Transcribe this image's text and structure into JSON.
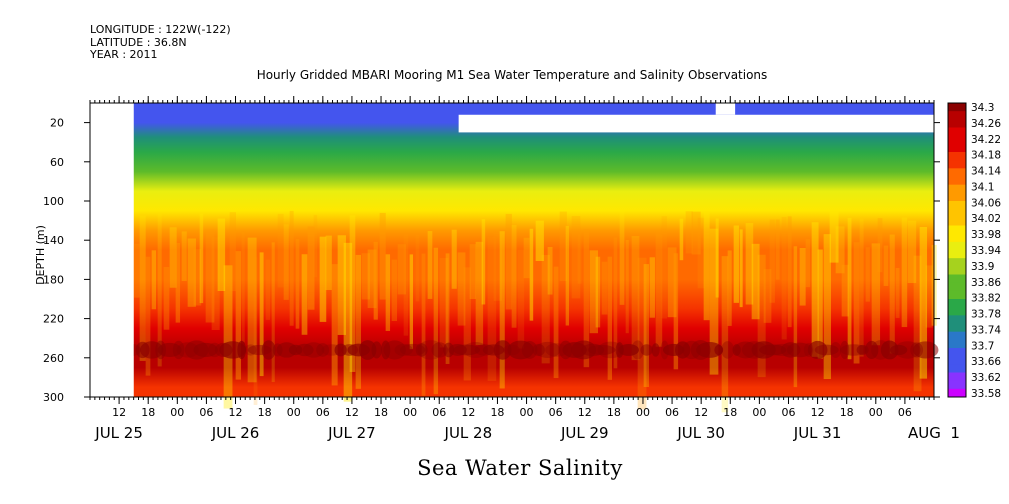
{
  "meta": {
    "longitude": "LONGITUDE : 122W(-122)",
    "latitude": "LATITUDE : 36.8N",
    "year": "YEAR : 2011"
  },
  "title": "Hourly Gridded MBARI Mooring M1 Sea Water Temperature and Salinity Observations",
  "colors": {
    "scale": [
      "#cc00ff",
      "#8833ff",
      "#4455ee",
      "#2a78c8",
      "#1f8f7a",
      "#2aa848",
      "#5dbb2a",
      "#a6d21e",
      "#e9ee10",
      "#ffe800",
      "#ffc400",
      "#ff9a00",
      "#ff6a00",
      "#f53300",
      "#e00000",
      "#b80000",
      "#8a0000"
    ]
  },
  "chart_data": {
    "type": "heatmap",
    "title": "Hourly Gridded MBARI Mooring M1 Sea Water Temperature and Salinity Observations",
    "xlabel": "Sea Water Salinity",
    "ylabel": "DEPTH (m)",
    "x_range": [
      "2011-07-25 06:00",
      "2011-08-01 12:00"
    ],
    "data_start": "2011-07-25 15:00",
    "ylim": [
      300,
      0
    ],
    "y_ticks": [
      20,
      60,
      100,
      140,
      180,
      220,
      260,
      300
    ],
    "x_hour_ticks": [
      "12",
      "18",
      "00",
      "06",
      "12",
      "18",
      "00",
      "06",
      "12",
      "18",
      "00",
      "06",
      "12",
      "18",
      "00",
      "06",
      "12",
      "18",
      "00",
      "06",
      "12",
      "18",
      "00",
      "06",
      "12",
      "18",
      "00",
      "06"
    ],
    "x_day_labels": [
      "JUL 25",
      "JUL 26",
      "JUL 27",
      "JUL 28",
      "JUL 29",
      "JUL 30",
      "JUL 31",
      "AUG  1"
    ],
    "colorbar_levels": [
      "34.3",
      "34.26",
      "34.22",
      "34.18",
      "34.14",
      "34.1",
      "34.06",
      "34.02",
      "33.98",
      "33.94",
      "33.9",
      "33.86",
      "33.82",
      "33.78",
      "33.74",
      "33.7",
      "33.66",
      "33.62",
      "33.58"
    ],
    "depth_profile": [
      {
        "depth": 10,
        "salinity": 33.66
      },
      {
        "depth": 20,
        "salinity": 33.68
      },
      {
        "depth": 35,
        "salinity": 33.74
      },
      {
        "depth": 50,
        "salinity": 33.8
      },
      {
        "depth": 70,
        "salinity": 33.86
      },
      {
        "depth": 90,
        "salinity": 33.92
      },
      {
        "depth": 110,
        "salinity": 33.98
      },
      {
        "depth": 130,
        "salinity": 34.06
      },
      {
        "depth": 150,
        "salinity": 34.12
      },
      {
        "depth": 180,
        "salinity": 34.14
      },
      {
        "depth": 210,
        "salinity": 34.17
      },
      {
        "depth": 230,
        "salinity": 34.2
      },
      {
        "depth": 250,
        "salinity": 34.27
      },
      {
        "depth": 270,
        "salinity": 34.26
      },
      {
        "depth": 290,
        "salinity": 34.18
      },
      {
        "depth": 300,
        "salinity": 34.16
      }
    ],
    "missing_regions": [
      {
        "x_from": "2011-07-25 06:00",
        "x_to": "2011-07-25 15:00",
        "depth_from": 0,
        "depth_to": 300
      },
      {
        "x_from": "2011-07-28 10:00",
        "x_to": "2011-08-01 12:00",
        "depth_from": 12,
        "depth_to": 30
      },
      {
        "x_from": "2011-07-30 15:00",
        "x_to": "2011-07-30 19:00",
        "depth_from": 0,
        "depth_to": 12
      }
    ]
  }
}
